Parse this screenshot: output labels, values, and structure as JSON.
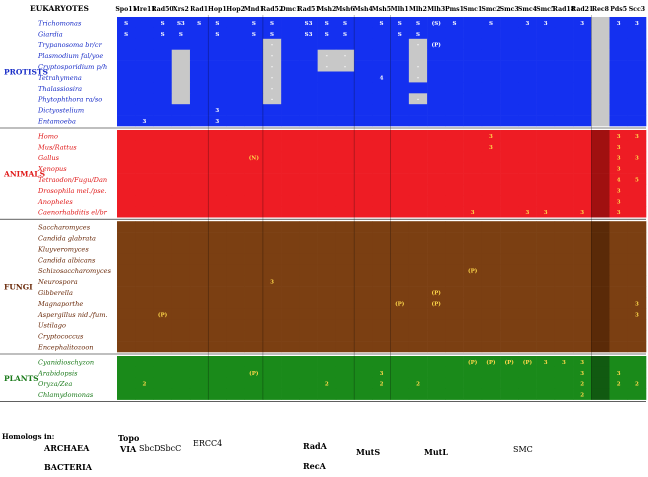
{
  "header": {
    "corner": "EUKARYOTES"
  },
  "genes": [
    "Spo11",
    "Mre11",
    "Rad50",
    "Xrs2",
    "Rad1",
    "Hop1",
    "Hop2",
    "Mnd1",
    "Rad52",
    "Dmc1",
    "Rad51",
    "Msh2",
    "Msh6",
    "Msh4",
    "Msh5",
    "Mlh1",
    "Mlh2",
    "Mlh3",
    "Pms1",
    "Smc1",
    "Smc2",
    "Smc3",
    "Smc4",
    "Smc5",
    "Rad18",
    "Rad21",
    "Rec8",
    "Pds5",
    "Scc3"
  ],
  "groups": [
    {
      "label": "PROTISTS",
      "color": "#1430f0",
      "organisms": [
        "Trichomonas",
        "Giardia",
        "Trypanosoma br/cr",
        "Plasmodium fal/yoe",
        "Cryptosporidium p/h",
        "Tetrahymena",
        "Thalassiosira",
        "Phytophthora ra/so",
        "Dictyostelium",
        "Entamoeba"
      ]
    },
    {
      "label": "ANIMALS",
      "color": "#ee1c24",
      "organisms": [
        "Homo",
        "Mus/Rattus",
        "Gallus",
        "Xenopus",
        "Tetraodon/Fugu/Dan",
        "Drosophila mel./pse.",
        "Anopheles",
        "Caenorhabditis el/br"
      ]
    },
    {
      "label": "FUNGI",
      "color": "#7b3f12",
      "organisms": [
        "Saccharomyces",
        "Candida glabrata",
        "Kluyveromyces",
        "Candida albicans",
        "Schizosaccharomyces",
        "Neurospora",
        "Gibberella",
        "Magnaporthe",
        "Aspergillus nid./fum.",
        "Ustilago",
        "Cryptococcus",
        "Encephalitozoon"
      ]
    },
    {
      "label": "PLANTS",
      "color": "#1a8a1a",
      "organisms": [
        "Cyanidioschyzon",
        "Arabidopsis",
        "Oryza/Zea",
        "Chlamydomonas"
      ]
    }
  ],
  "grid_marks": {
    "Trichomonas": {
      "Spo11": "S",
      "Rad50": "S",
      "Xrs2": "S3",
      "Rad1": "S",
      "Hop1": "S",
      "Mnd1": "S",
      "Rad52": "S",
      "Rad51": "S3",
      "Msh2": "S",
      "Msh6": "S",
      "Msh5": "S",
      "Mlh1": "S",
      "Mlh2": "S",
      "Mlh3": "(S)",
      "Pms1": "S",
      "Smc2": "S",
      "Smc4": "3",
      "Smc5": "3",
      "Rad21": "3",
      "Pds5": "3",
      "Scc3": "3"
    },
    "Giardia": {
      "Spo11": "S",
      "Rad50": "S",
      "Xrs2": "S",
      "Hop1": "S",
      "Mnd1": "S",
      "Rad52": "S",
      "Rad51": "S3",
      "Msh2": "S",
      "Msh6": "S",
      "Mlh1": "S",
      "Mlh2": "S"
    },
    "Trypanosoma br/cr": {
      "Rad52": "-",
      "Mlh2": "-",
      "Mlh3": "(P)"
    },
    "Plasmodium fal/yoe": {
      "Rad52": "-",
      "Msh2": "-",
      "Msh6": "-"
    },
    "Cryptosporidium p/h": {
      "Rad52": "-",
      "Msh2": "-",
      "Msh6": "-",
      "Mlh2": "-"
    },
    "Tetrahymena": {
      "Rad52": "-",
      "Msh5": "4",
      "Mlh2": "-"
    },
    "Thalassiosira": {
      "Rad52": "-"
    },
    "Phytophthora ra/so": {
      "Rad52": "-",
      "Mlh2": "-"
    },
    "Dictyostelium": {
      "Hop1": "3"
    },
    "Entamoeba": {
      "Mre11": "3",
      "Hop1": "3"
    },
    "Homo": {
      "Smc2": "3",
      "Pds5": "3",
      "Scc3": "3"
    },
    "Mus/Rattus": {
      "Smc2": "3",
      "Pds5": "3"
    },
    "Gallus": {
      "Mnd1": "(N)",
      "Pds5": "3",
      "Scc3": "3"
    },
    "Xenopus": {
      "Pds5": "3"
    },
    "Tetraodon/Fugu/Dan": {
      "Pds5": "4",
      "Scc3": "5"
    },
    "Drosophila mel./pse.": {
      "Pds5": "3"
    },
    "Anopheles": {
      "Pds5": "3"
    },
    "Caenorhabditis el/br": {
      "Smc1": "3",
      "Smc4": "3",
      "Smc5": "3",
      "Rad21": "3",
      "Pds5": "3"
    },
    "Schizosaccharomyces": {
      "Smc1": "(P)"
    },
    "Neurospora": {
      "Rad52": "3"
    },
    "Gibberella": {
      "Mlh3": "(P)"
    },
    "Magnaporthe": {
      "Mlh1": "(P)",
      "Mlh3": "(P)",
      "Scc3": "3"
    },
    "Aspergillus nid./fum.": {
      "Rad50": "(P)",
      "Scc3": "3"
    },
    "Cyanidioschyzon": {
      "Smc1": "(P)",
      "Smc2": "(P)",
      "Smc3": "(P)",
      "Smc4": "(P)",
      "Smc5": "3",
      "Rad18": "3",
      "Rad21": "3"
    },
    "Arabidopsis": {
      "Mnd1": "(P)",
      "Msh5": "3",
      "Rad21": "3",
      "Pds5": "3"
    },
    "Oryza/Zea": {
      "Mre11": "2",
      "Msh2": "2",
      "Msh5": "2",
      "Mlh2": "2",
      "Rad21": "2",
      "Pds5": "2",
      "Scc3": "2"
    },
    "Chlamydomonas": {
      "Rad21": "2"
    }
  },
  "homologs": {
    "title": "Homologs in:",
    "archaea_label": "ARCHAEA",
    "bacteria_label": "BACTERIA",
    "items": [
      {
        "key": "topo",
        "text": "Topo"
      },
      {
        "key": "via",
        "text": "VIA"
      },
      {
        "key": "sbcd",
        "text": "SbcD"
      },
      {
        "key": "sbcc",
        "text": "SbcC"
      },
      {
        "key": "ercc4",
        "text": "ERCC4"
      },
      {
        "key": "rada",
        "text": "RadA"
      },
      {
        "key": "reca",
        "text": "RecA"
      },
      {
        "key": "muts",
        "text": "MutS"
      },
      {
        "key": "mutl",
        "text": "MutL"
      },
      {
        "key": "smc",
        "text": "SMC"
      }
    ]
  },
  "colors": {
    "protist": "#1430f0",
    "animal": "#ee1c24",
    "fungi": "#7b3f12",
    "plant": "#1a8a1a",
    "absent": "#c8c8c8",
    "empty": "#ffffff",
    "protist_label": "#1a2ec8",
    "animal_label": "#e01a1a",
    "fungi_label": "#6a2a0a",
    "plant_label": "#1a7a1a",
    "note": "#ffd84a"
  }
}
